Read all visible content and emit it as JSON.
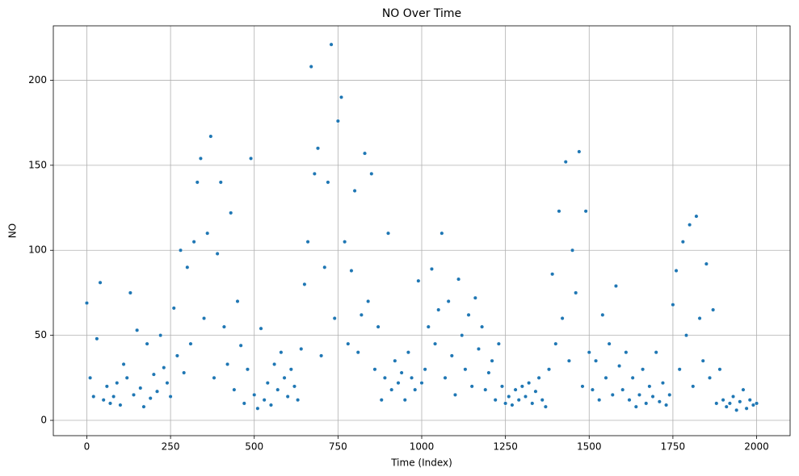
{
  "chart_data": {
    "type": "scatter",
    "title": "NO Over Time",
    "x_label": "Time (Index)",
    "y_label": "NO",
    "color": "#1f77b4",
    "grid": true,
    "xlim": [
      -100,
      2100
    ],
    "ylim": [
      -9,
      232
    ],
    "xticks": [
      0,
      250,
      500,
      750,
      1000,
      1250,
      1500,
      1750,
      2000
    ],
    "yticks": [
      0,
      50,
      100,
      150,
      200
    ],
    "x": [
      0,
      10,
      20,
      30,
      40,
      50,
      60,
      70,
      80,
      90,
      100,
      110,
      120,
      130,
      140,
      150,
      160,
      170,
      180,
      190,
      200,
      210,
      220,
      230,
      240,
      250,
      260,
      270,
      280,
      290,
      300,
      310,
      320,
      330,
      340,
      350,
      360,
      370,
      380,
      390,
      400,
      410,
      420,
      430,
      440,
      450,
      460,
      470,
      480,
      490,
      500,
      510,
      520,
      530,
      540,
      550,
      560,
      570,
      580,
      590,
      600,
      610,
      620,
      630,
      640,
      650,
      660,
      670,
      680,
      690,
      700,
      710,
      720,
      730,
      740,
      750,
      760,
      770,
      780,
      790,
      800,
      810,
      820,
      830,
      840,
      850,
      860,
      870,
      880,
      890,
      900,
      910,
      920,
      930,
      940,
      950,
      960,
      970,
      980,
      990,
      1000,
      1010,
      1020,
      1030,
      1040,
      1050,
      1060,
      1070,
      1080,
      1090,
      1100,
      1110,
      1120,
      1130,
      1140,
      1150,
      1160,
      1170,
      1180,
      1190,
      1200,
      1210,
      1220,
      1230,
      1240,
      1250,
      1260,
      1270,
      1280,
      1290,
      1300,
      1310,
      1320,
      1330,
      1340,
      1350,
      1360,
      1370,
      1380,
      1390,
      1400,
      1410,
      1420,
      1430,
      1440,
      1450,
      1460,
      1470,
      1480,
      1490,
      1500,
      1510,
      1520,
      1530,
      1540,
      1550,
      1560,
      1570,
      1580,
      1590,
      1600,
      1610,
      1620,
      1630,
      1640,
      1650,
      1660,
      1670,
      1680,
      1690,
      1700,
      1710,
      1720,
      1730,
      1740,
      1750,
      1760,
      1770,
      1780,
      1790,
      1800,
      1810,
      1820,
      1830,
      1840,
      1850,
      1860,
      1870,
      1880,
      1890,
      1900,
      1910,
      1920,
      1930,
      1940,
      1950,
      1960,
      1970,
      1980,
      1990,
      2000
    ],
    "values": [
      69,
      25,
      14,
      48,
      81,
      12,
      20,
      10,
      14,
      22,
      9,
      33,
      25,
      75,
      15,
      53,
      19,
      8,
      45,
      13,
      27,
      17,
      50,
      31,
      22,
      14,
      66,
      38,
      100,
      28,
      90,
      45,
      105,
      140,
      154,
      60,
      110,
      167,
      25,
      98,
      140,
      55,
      33,
      122,
      18,
      70,
      44,
      10,
      30,
      154,
      15,
      7,
      54,
      12,
      22,
      9,
      33,
      18,
      40,
      25,
      14,
      30,
      20,
      12,
      42,
      80,
      105,
      208,
      145,
      160,
      38,
      90,
      140,
      221,
      60,
      176,
      190,
      105,
      45,
      88,
      135,
      40,
      62,
      157,
      70,
      145,
      30,
      55,
      12,
      25,
      110,
      18,
      35,
      22,
      28,
      12,
      40,
      25,
      18,
      82,
      22,
      30,
      55,
      89,
      45,
      65,
      110,
      25,
      70,
      38,
      15,
      83,
      50,
      30,
      62,
      20,
      72,
      42,
      55,
      18,
      28,
      35,
      12,
      45,
      20,
      10,
      14,
      9,
      18,
      12,
      20,
      14,
      22,
      10,
      17,
      25,
      12,
      8,
      30,
      86,
      45,
      123,
      60,
      152,
      35,
      100,
      75,
      158,
      20,
      123,
      40,
      18,
      35,
      12,
      62,
      25,
      45,
      15,
      79,
      32,
      18,
      40,
      12,
      25,
      8,
      15,
      30,
      10,
      20,
      14,
      40,
      11,
      22,
      9,
      15,
      68,
      88,
      30,
      105,
      50,
      115,
      20,
      120,
      60,
      35,
      92,
      25,
      65,
      10,
      30,
      12,
      8,
      10,
      14,
      6,
      11,
      18,
      7,
      12,
      9,
      10
    ]
  }
}
